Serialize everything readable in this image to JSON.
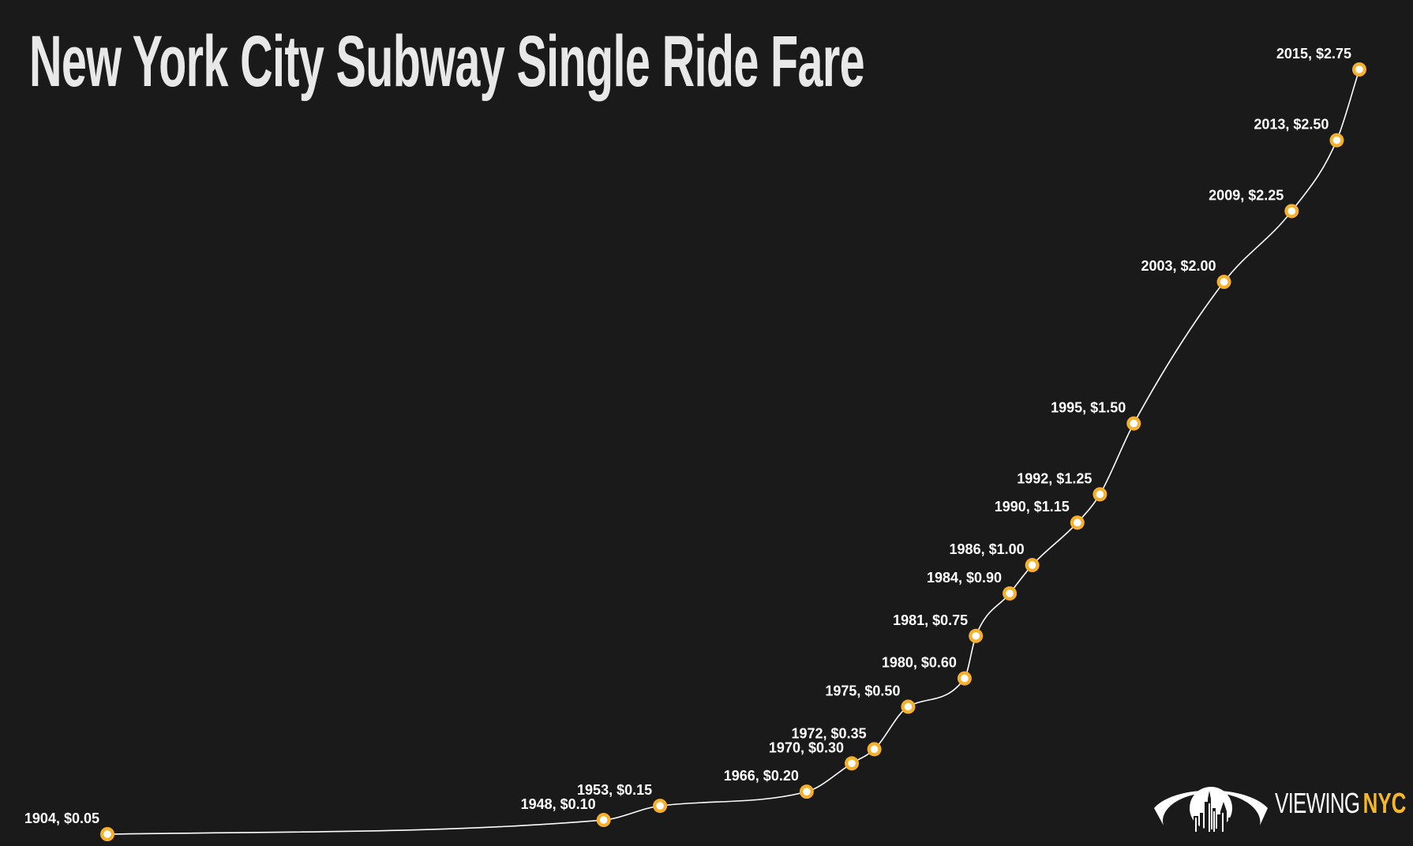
{
  "title": "New York City Subway Single Ride Fare",
  "colors": {
    "background": "#1a1a1a",
    "title": "#e8e8e8",
    "line": "#ffffff",
    "marker": "#f6b02c",
    "marker_center": "#ffffff",
    "label": "#ffffff",
    "brand_accent": "#f5b82a"
  },
  "logo": {
    "icon": "eye-skyline-icon",
    "text_primary": "VIEWING",
    "text_accent": "NYC"
  },
  "chart_data": {
    "type": "line",
    "title": "New York City Subway Single Ride Fare",
    "xlabel": "",
    "ylabel": "",
    "grid": false,
    "axes_visible": false,
    "xlim": [
      1904,
      2015
    ],
    "ylim": [
      0.05,
      2.75
    ],
    "series": [
      {
        "name": "Single Ride Fare",
        "points": [
          {
            "year": 1904,
            "fare": 0.05,
            "label": "1904, $0.05"
          },
          {
            "year": 1948,
            "fare": 0.1,
            "label": "1948, $0.10"
          },
          {
            "year": 1953,
            "fare": 0.15,
            "label": "1953, $0.15"
          },
          {
            "year": 1966,
            "fare": 0.2,
            "label": "1966, $0.20"
          },
          {
            "year": 1970,
            "fare": 0.3,
            "label": "1970, $0.30"
          },
          {
            "year": 1972,
            "fare": 0.35,
            "label": "1972, $0.35"
          },
          {
            "year": 1975,
            "fare": 0.5,
            "label": "1975, $0.50"
          },
          {
            "year": 1980,
            "fare": 0.6,
            "label": "1980, $0.60"
          },
          {
            "year": 1981,
            "fare": 0.75,
            "label": "1981, $0.75"
          },
          {
            "year": 1984,
            "fare": 0.9,
            "label": "1984, $0.90"
          },
          {
            "year": 1986,
            "fare": 1.0,
            "label": "1986, $1.00"
          },
          {
            "year": 1990,
            "fare": 1.15,
            "label": "1990, $1.15"
          },
          {
            "year": 1992,
            "fare": 1.25,
            "label": "1992, $1.25"
          },
          {
            "year": 1995,
            "fare": 1.5,
            "label": "1995, $1.50"
          },
          {
            "year": 2003,
            "fare": 2.0,
            "label": "2003, $2.00"
          },
          {
            "year": 2009,
            "fare": 2.25,
            "label": "2009, $2.25"
          },
          {
            "year": 2013,
            "fare": 2.5,
            "label": "2013, $2.50"
          },
          {
            "year": 2015,
            "fare": 2.75,
            "label": "2015, $2.75"
          }
        ]
      }
    ],
    "x": [
      1904,
      1948,
      1953,
      1966,
      1970,
      1972,
      1975,
      1980,
      1981,
      1984,
      1986,
      1990,
      1992,
      1995,
      2003,
      2009,
      2013,
      2015
    ],
    "values": [
      0.05,
      0.1,
      0.15,
      0.2,
      0.3,
      0.35,
      0.5,
      0.6,
      0.75,
      0.9,
      1.0,
      1.15,
      1.25,
      1.5,
      2.0,
      2.25,
      2.5,
      2.75
    ]
  }
}
